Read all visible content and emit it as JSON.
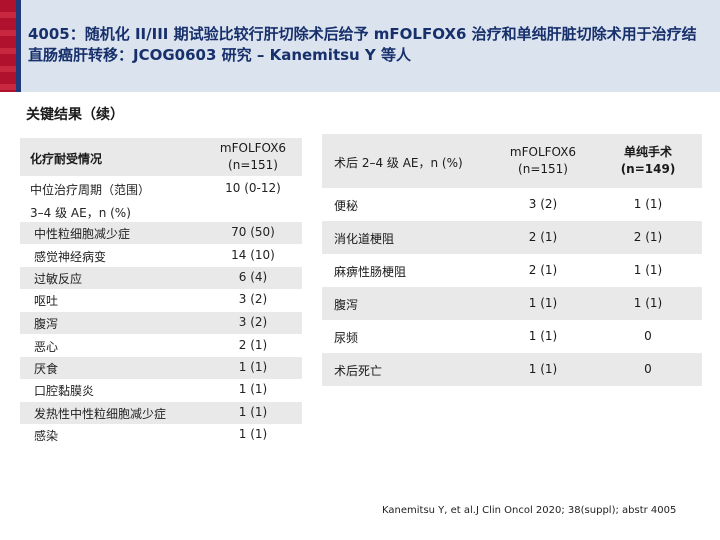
{
  "header": {
    "title": "4005：随机化 II/III 期试验比较行肝切除术后给予 mFOLFOX6 治疗和单纯肝脏切除术用于治疗结直肠癌肝转移：JCOG0603 研究 – Kanemitsu Y 等人"
  },
  "section_title": "关键结果（续）",
  "left_table": {
    "header_col1": "化疗耐受情况",
    "header_col2": "mFOLFOX6 (n=151)",
    "rows": [
      {
        "label": "中位治疗周期（范围）",
        "value": "10 (0-12)"
      },
      {
        "label": "3–4 级 AE，n (%)",
        "value": ""
      },
      {
        "label": "中性粒细胞减少症",
        "value": "70 (50)"
      },
      {
        "label": "感觉神经病变",
        "value": "14 (10)"
      },
      {
        "label": "过敏反应",
        "value": "6 (4)"
      },
      {
        "label": "呕吐",
        "value": "3 (2)"
      },
      {
        "label": "腹泻",
        "value": "3 (2)"
      },
      {
        "label": "恶心",
        "value": "2 (1)"
      },
      {
        "label": "厌食",
        "value": "1 (1)"
      },
      {
        "label": "口腔黏膜炎",
        "value": "1 (1)"
      },
      {
        "label": "发热性中性粒细胞减少症",
        "value": "1 (1)"
      },
      {
        "label": "感染",
        "value": "1 (1)"
      }
    ]
  },
  "right_table": {
    "header_col1": "术后 2–4 级 AE，n (%)",
    "header_col2": "mFOLFOX6 (n=151)",
    "header_col3": "单纯手术 (n=149)",
    "rows": [
      {
        "label": "便秘",
        "a": "3 (2)",
        "b": "1 (1)"
      },
      {
        "label": "消化道梗阻",
        "a": "2 (1)",
        "b": "2 (1)"
      },
      {
        "label": "麻痹性肠梗阻",
        "a": "2 (1)",
        "b": "1 (1)"
      },
      {
        "label": "腹泻",
        "a": "1 (1)",
        "b": "1 (1)"
      },
      {
        "label": "尿频",
        "a": "1 (1)",
        "b": "0"
      },
      {
        "label": "术后死亡",
        "a": "1 (1)",
        "b": "0"
      }
    ]
  },
  "footnote": "Kanemitsu Y, et al.J Clin Oncol 2020; 38(suppl); abstr 4005"
}
